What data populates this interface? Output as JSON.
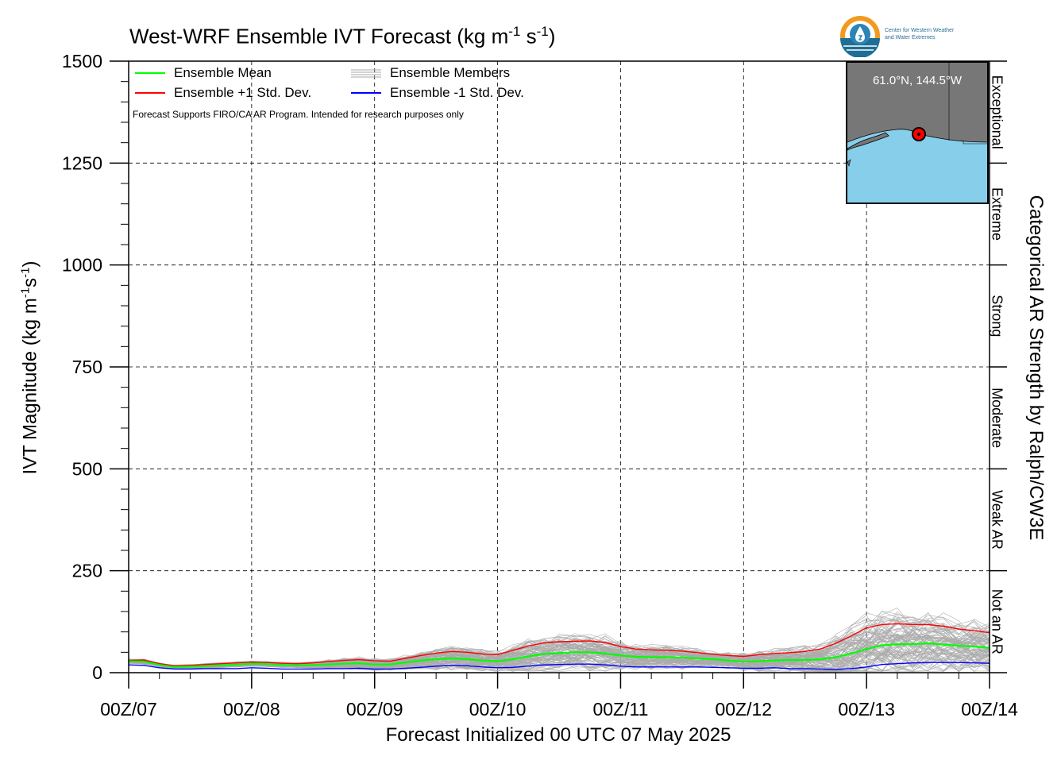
{
  "title": {
    "text": "West-WRF Ensemble IVT Forecast (kg m",
    "exp1": "-1",
    "mid": " s",
    "exp2": "-1",
    "end": ")"
  },
  "y_axis_label": {
    "text": "IVT Magnitude (kg m",
    "exp1": "-1",
    "mid": "s",
    "exp2": "-1",
    "end": ")"
  },
  "x_axis_label": "Forecast Initialized 00 UTC 07 May 2025",
  "right_axis_label": "Categorical AR Strength by Ralph/CW3E",
  "note": "Forecast Supports FIRO/CA AR Program. Intended for research purposes only",
  "logo": {
    "line1": "Center for Western Weather",
    "line2": "and Water Extremes",
    "icon": "water-drop-icon"
  },
  "inset_map": {
    "coords": "61.0°N, 144.5°W",
    "land_color": "#777777",
    "water_color": "#87ceeb",
    "marker_color": "#ff0000"
  },
  "legend": [
    {
      "label": "Ensemble Mean",
      "color": "#00ff00"
    },
    {
      "label": "Ensemble +1 Std. Dev.",
      "color": "#ff0000"
    },
    {
      "label": "Ensemble Members",
      "color": "#aaaaaa"
    },
    {
      "label": "Ensemble -1 Std. Dev.",
      "color": "#0000ff"
    }
  ],
  "chart_data": {
    "type": "line",
    "ylim": [
      0,
      1500
    ],
    "xlim": [
      0,
      168
    ],
    "yticks": [
      0,
      250,
      500,
      750,
      1000,
      1250,
      1500
    ],
    "xticks": [
      {
        "value": 0,
        "label": "00Z/07"
      },
      {
        "value": 24,
        "label": "00Z/08"
      },
      {
        "value": 48,
        "label": "00Z/09"
      },
      {
        "value": 72,
        "label": "00Z/10"
      },
      {
        "value": 96,
        "label": "00Z/11"
      },
      {
        "value": 120,
        "label": "00Z/12"
      },
      {
        "value": 144,
        "label": "00Z/13"
      },
      {
        "value": 168,
        "label": "00Z/14"
      }
    ],
    "grid": true,
    "categories": [
      {
        "label": "Not an AR",
        "from": 0,
        "to": 250
      },
      {
        "label": "Weak AR",
        "from": 250,
        "to": 500
      },
      {
        "label": "Moderate",
        "from": 500,
        "to": 750
      },
      {
        "label": "Strong",
        "from": 750,
        "to": 1000
      },
      {
        "label": "Extreme",
        "from": 1000,
        "to": 1250
      },
      {
        "label": "Exceptional",
        "from": 1250,
        "to": 1500
      }
    ],
    "x": [
      0,
      3,
      6,
      9,
      12,
      15,
      18,
      21,
      24,
      27,
      30,
      33,
      36,
      39,
      42,
      45,
      48,
      51,
      54,
      57,
      60,
      63,
      66,
      69,
      72,
      75,
      78,
      81,
      84,
      87,
      90,
      93,
      96,
      99,
      102,
      105,
      108,
      111,
      114,
      117,
      120,
      123,
      126,
      129,
      132,
      135,
      138,
      141,
      144,
      147,
      150,
      153,
      156,
      159,
      162,
      165,
      168
    ],
    "series": [
      {
        "name": "Ensemble Mean",
        "color": "#00ff00",
        "values": [
          28,
          27,
          19,
          14,
          15,
          16,
          18,
          20,
          22,
          21,
          19,
          18,
          19,
          20,
          22,
          23,
          20,
          20,
          25,
          30,
          33,
          35,
          33,
          30,
          28,
          33,
          40,
          46,
          48,
          50,
          50,
          47,
          42,
          39,
          38,
          38,
          37,
          35,
          33,
          30,
          27,
          28,
          30,
          31,
          31,
          33,
          38,
          47,
          58,
          67,
          70,
          70,
          72,
          69,
          66,
          64,
          61
        ]
      },
      {
        "name": "Ensemble +1 Std. Dev.",
        "color": "#ff0000",
        "values": [
          30,
          31,
          22,
          17,
          18,
          20,
          22,
          24,
          26,
          25,
          23,
          22,
          24,
          27,
          30,
          32,
          29,
          28,
          35,
          42,
          48,
          52,
          50,
          46,
          44,
          55,
          65,
          73,
          76,
          77,
          78,
          74,
          64,
          58,
          56,
          55,
          53,
          49,
          45,
          42,
          40,
          44,
          47,
          49,
          52,
          58,
          72,
          90,
          110,
          118,
          120,
          118,
          118,
          114,
          107,
          103,
          98
        ]
      },
      {
        "name": "Ensemble -1 Std. Dev.",
        "color": "#0000ff",
        "values": [
          19,
          18,
          12,
          9,
          9,
          10,
          10,
          10,
          12,
          11,
          9,
          9,
          9,
          10,
          10,
          11,
          9,
          9,
          11,
          13,
          16,
          18,
          17,
          14,
          12,
          13,
          16,
          19,
          20,
          21,
          21,
          19,
          16,
          14,
          14,
          14,
          14,
          14,
          13,
          12,
          11,
          11,
          12,
          10,
          10,
          9,
          8,
          10,
          14,
          20,
          22,
          24,
          25,
          25,
          25,
          24,
          23
        ]
      }
    ],
    "members": {
      "count": 100,
      "color": "#aaaaaa"
    }
  }
}
